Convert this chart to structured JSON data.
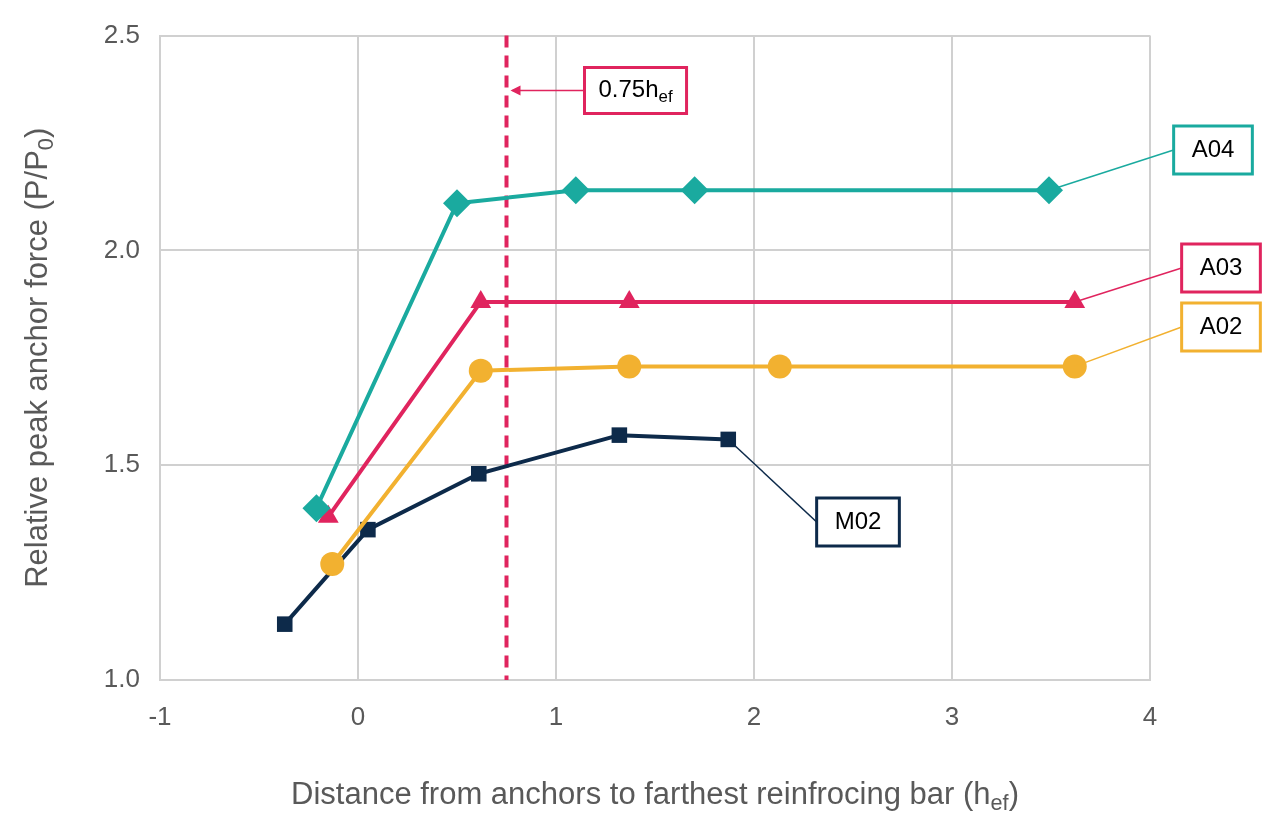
{
  "chart_data": {
    "type": "line",
    "xlabel": "Distance from anchors to farthest reinfrocing bar (h$_{ef}$)",
    "ylabel": "Relative peak anchor force (P/P$_{0}$)",
    "xlim": [
      -1,
      4
    ],
    "xticks": [
      -1,
      0,
      1,
      2,
      3,
      4
    ],
    "ylim": [
      1.0,
      2.5
    ],
    "yticks": [
      {
        "value": 1.0,
        "label": "1.0"
      },
      {
        "value": 1.5,
        "label": "1.5"
      },
      {
        "value": 2.0,
        "label": "2.0"
      },
      {
        "value": 2.5,
        "label": "2.5"
      }
    ],
    "grid": true,
    "legend": false,
    "line_style": "solid",
    "series": [
      {
        "name": "A04",
        "color": "#1aaa9f",
        "marker": "diamond",
        "x": [
          -0.21,
          0.5,
          1.1,
          1.7,
          3.49
        ],
        "values": [
          1.4,
          2.11,
          2.14,
          2.14,
          2.14
        ]
      },
      {
        "name": "A03",
        "color": "#e0245e",
        "marker": "triangle",
        "x": [
          -0.15,
          0.62,
          1.37,
          3.62
        ],
        "values": [
          1.38,
          1.88,
          1.88,
          1.88
        ]
      },
      {
        "name": "A02",
        "color": "#f2b130",
        "marker": "circle",
        "x": [
          -0.13,
          0.62,
          1.37,
          2.13,
          3.62
        ],
        "values": [
          1.27,
          1.72,
          1.73,
          1.73,
          1.73
        ]
      },
      {
        "name": "M02",
        "color": "#0d2a4a",
        "marker": "square",
        "x": [
          -0.37,
          0.05,
          0.61,
          1.32,
          1.87
        ],
        "values": [
          1.13,
          1.35,
          1.48,
          1.57,
          1.56
        ]
      }
    ],
    "ref_lines": [
      {
        "axis": "x",
        "value": 0.75,
        "label": "0.75h$_{ef}$",
        "color": "#e0245e",
        "line_style": "dashed"
      }
    ]
  }
}
